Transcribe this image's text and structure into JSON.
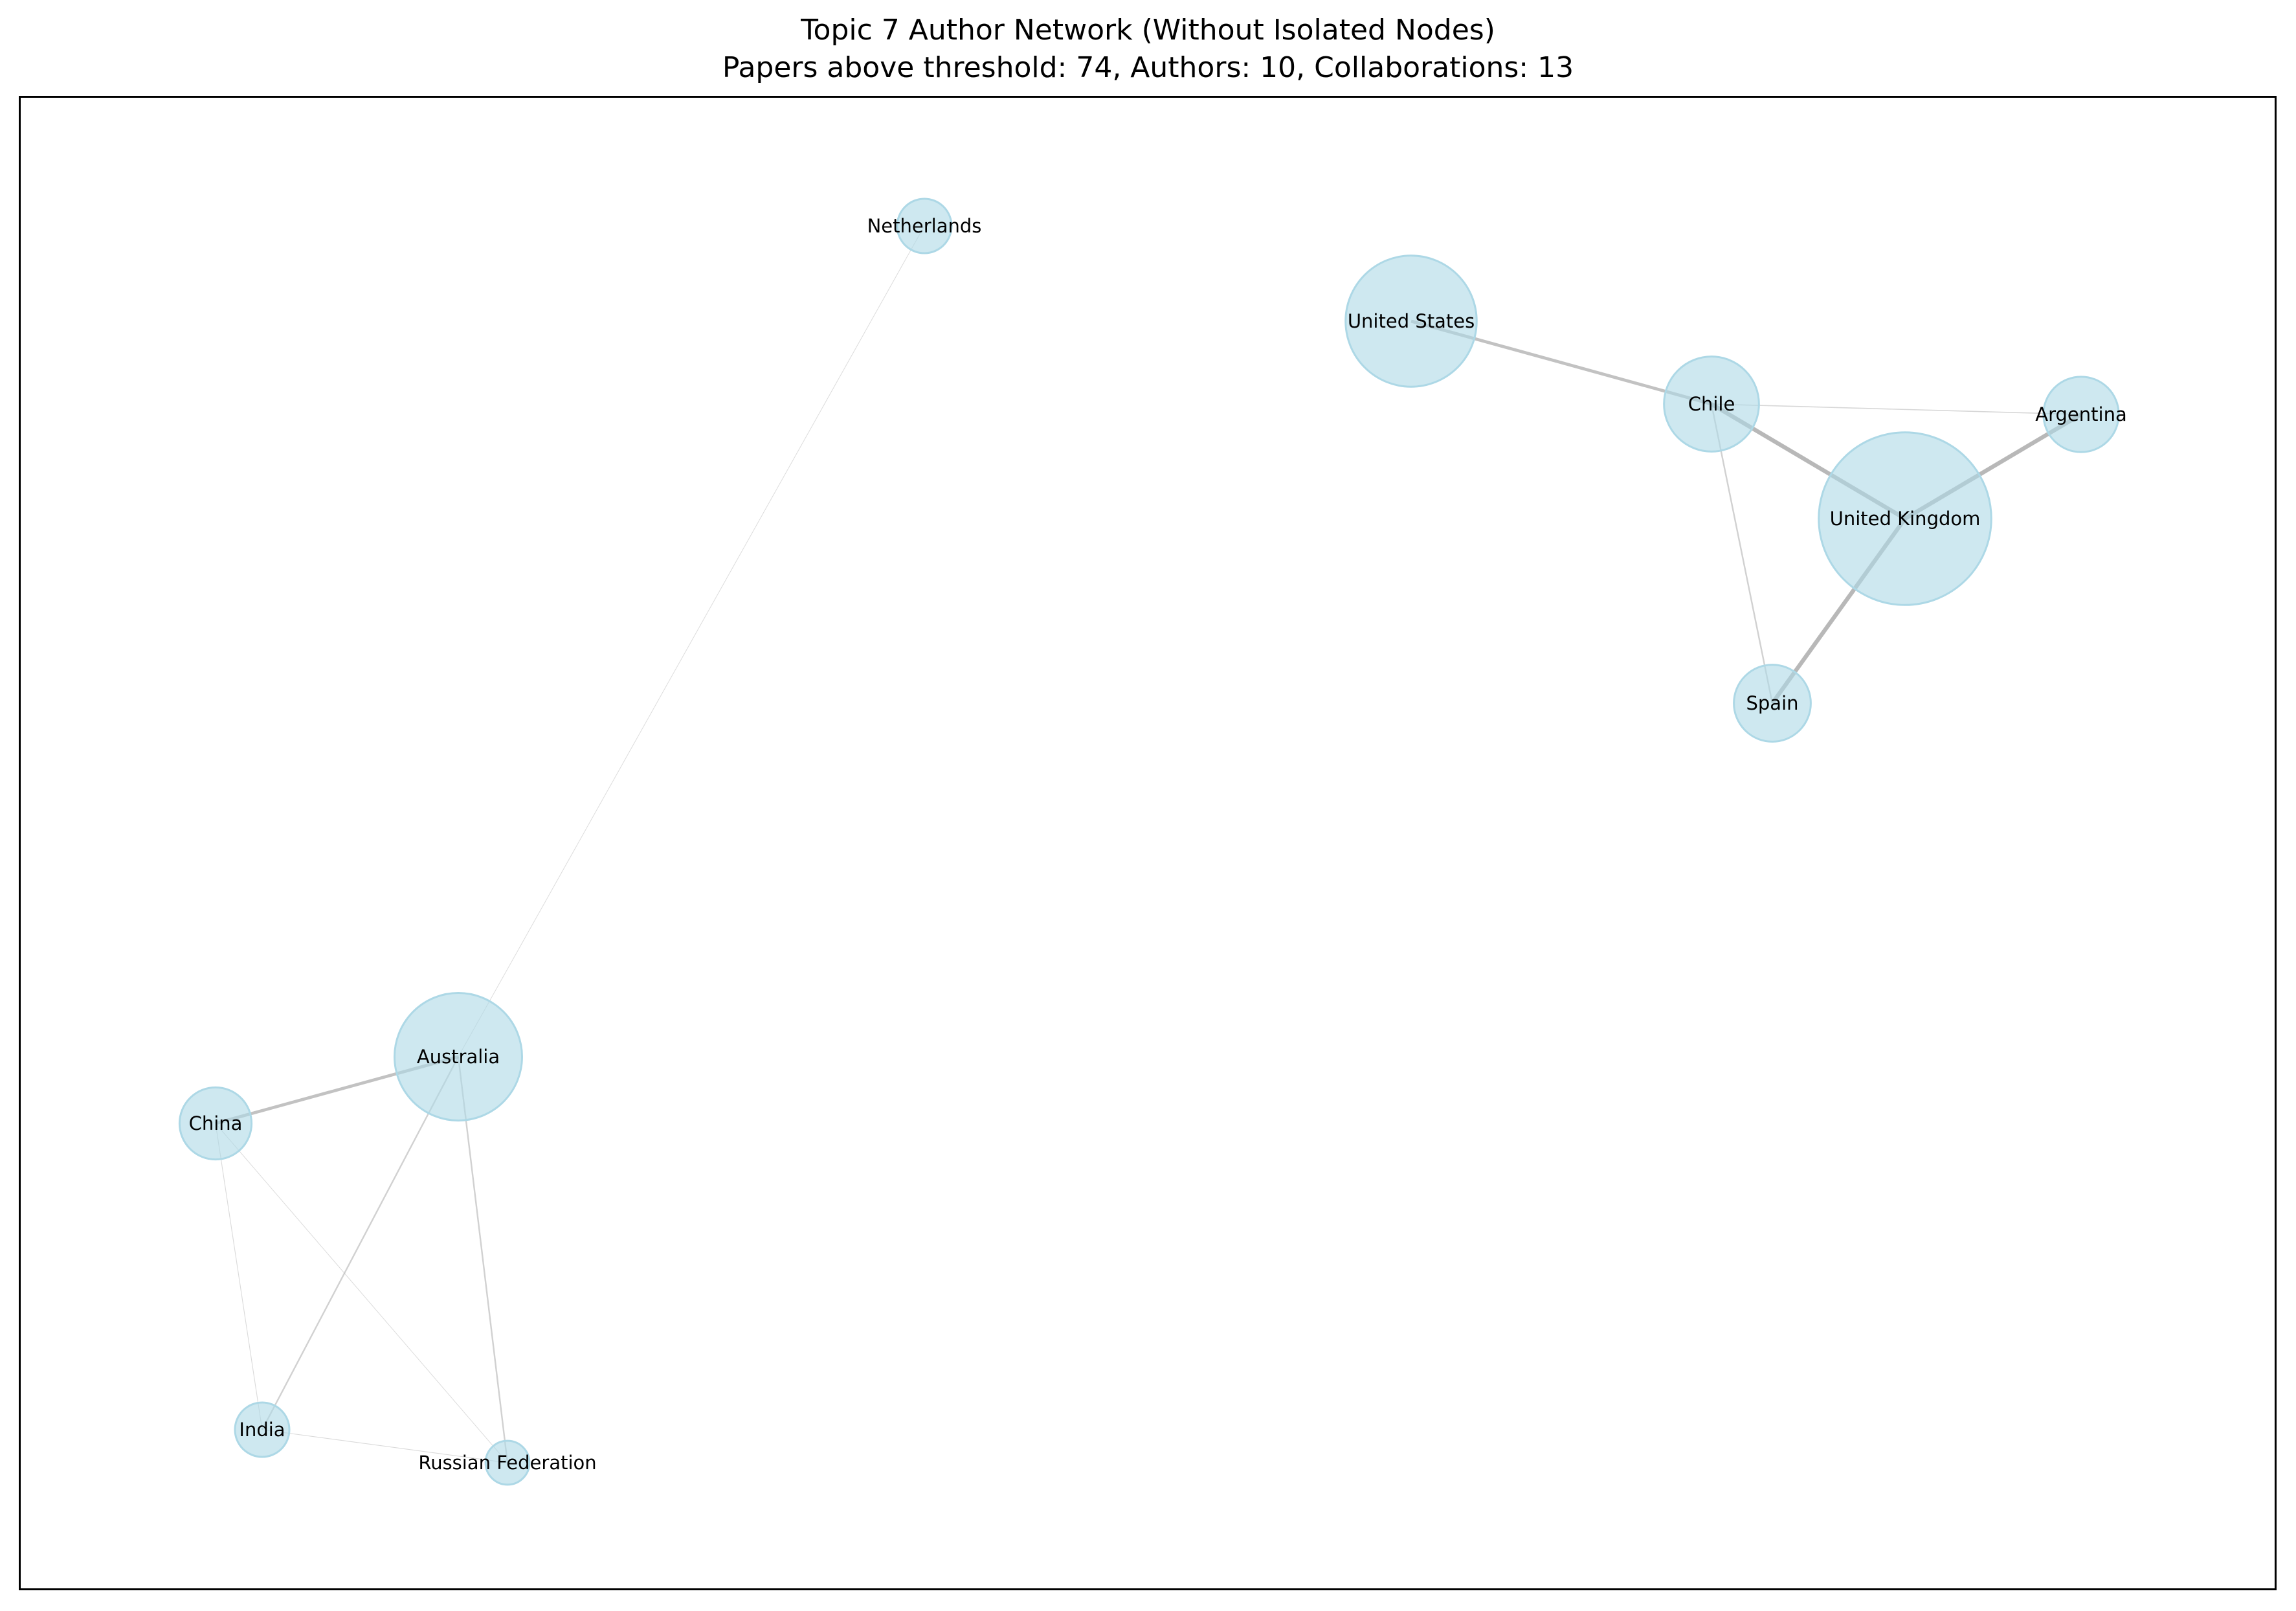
{
  "title": {
    "line1": "Topic 7 Author Network (Without Isolated Nodes)",
    "line2": "Papers above threshold: 74, Authors: 10, Collaborations: 13"
  },
  "colors": {
    "node_fill": "#add8e6",
    "node_edge": "#add8e6",
    "edge": "#a9a9a9",
    "frame": "#000000"
  },
  "network": {
    "nodes": [
      {
        "id": "Netherlands",
        "label": "Netherlands",
        "size": 1
      },
      {
        "id": "United States",
        "label": "United States",
        "size": 7
      },
      {
        "id": "Chile",
        "label": "Chile",
        "size": 3.5
      },
      {
        "id": "Argentina",
        "label": "Argentina",
        "size": 2.1
      },
      {
        "id": "United Kingdom",
        "label": "United Kingdom",
        "size": 12.5
      },
      {
        "id": "Spain",
        "label": "Spain",
        "size": 2.2
      },
      {
        "id": "Australia",
        "label": "Australia",
        "size": 6.6
      },
      {
        "id": "China",
        "label": "China",
        "size": 1.9
      },
      {
        "id": "India",
        "label": "India",
        "size": 1.0
      },
      {
        "id": "Russian Federation",
        "label": "Russian Federation",
        "size": 0.6
      }
    ],
    "edges": [
      {
        "source": "United States",
        "target": "Chile",
        "weight": 3
      },
      {
        "source": "Chile",
        "target": "United Kingdom",
        "weight": 4
      },
      {
        "source": "Chile",
        "target": "Argentina",
        "weight": 1
      },
      {
        "source": "Chile",
        "target": "Spain",
        "weight": 1.5
      },
      {
        "source": "United Kingdom",
        "target": "Argentina",
        "weight": 4
      },
      {
        "source": "United Kingdom",
        "target": "Spain",
        "weight": 4
      },
      {
        "source": "Netherlands",
        "target": "Australia",
        "weight": 0.5
      },
      {
        "source": "Australia",
        "target": "China",
        "weight": 3
      },
      {
        "source": "Australia",
        "target": "India",
        "weight": 1.5
      },
      {
        "source": "Australia",
        "target": "Russian Federation",
        "weight": 1.5
      },
      {
        "source": "China",
        "target": "India",
        "weight": 0.7
      },
      {
        "source": "China",
        "target": "Russian Federation",
        "weight": 0.5
      },
      {
        "source": "India",
        "target": "Russian Federation",
        "weight": 0.7
      }
    ]
  }
}
